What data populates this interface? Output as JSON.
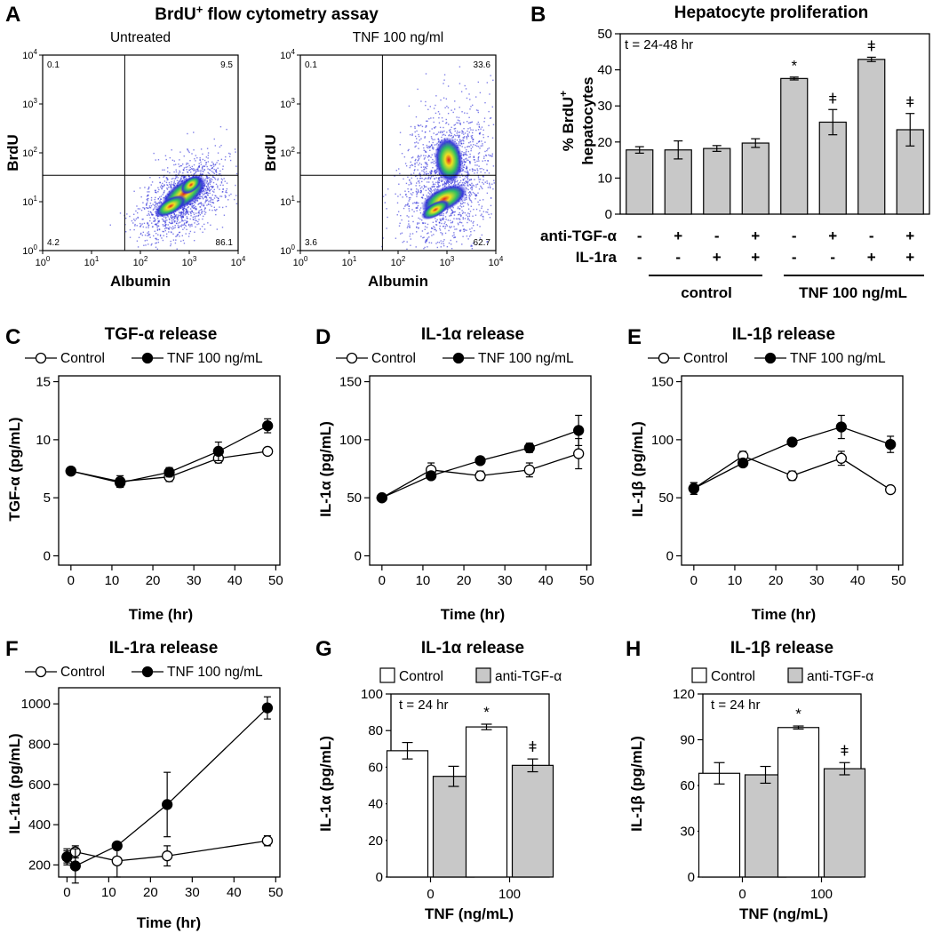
{
  "colors": {
    "bar_fill": "#c8c8c8",
    "bar_open": "#ffffff",
    "density_low": "#2b2bd9",
    "density_mid": "#2fc060",
    "density_high": "#f0e020",
    "density_peak": "#e02020"
  },
  "panels": {
    "A": {
      "label": "A",
      "title_main": "BrdU",
      "title_sup": "+",
      "title_rest": " flow cytometry assay",
      "plots": [
        {
          "subtitle": "Untreated",
          "xlabel": "Albumin",
          "ylabel": "BrdU",
          "ul": "0.1",
          "ur": "9.5",
          "ll": "4.2",
          "lr": "86.1"
        },
        {
          "subtitle": "TNF 100 ng/ml",
          "xlabel": "Albumin",
          "ylabel": "BrdU",
          "ul": "0.1",
          "ur": "33.6",
          "ll": "3.6",
          "lr": "62.7"
        }
      ],
      "tick_base": "10",
      "tick_exps": [
        "0",
        "1",
        "2",
        "3",
        "4"
      ]
    },
    "B": {
      "label": "B",
      "title": "Hepatocyte proliferation",
      "note": "t = 24-48 hr",
      "ylabel1": "% BrdU",
      "ylabel_sup": "+",
      "ylabel2": "hepatocytes",
      "row1_label": "anti-TGF-α",
      "row2_label": "IL-1ra",
      "group1": "control",
      "group2": "TNF 100 ng/mL"
    },
    "C": {
      "label": "C",
      "title": "TGF-α release",
      "ylabel": "TGF-α (pg/mL)",
      "xlabel": "Time (hr)"
    },
    "D": {
      "label": "D",
      "title": "IL-1α release",
      "ylabel": "IL-1α (pg/mL)",
      "xlabel": "Time (hr)"
    },
    "E": {
      "label": "E",
      "title": "IL-1β release",
      "ylabel": "IL-1β (pg/mL)",
      "xlabel": "Time (hr)"
    },
    "F": {
      "label": "F",
      "title": "IL-1ra release",
      "ylabel": "IL-1ra (pg/mL)",
      "xlabel": "Time (hr)"
    },
    "G": {
      "label": "G",
      "title": "IL-1α release",
      "ylabel": "IL-1α (pg/mL)",
      "xlabel": "TNF (ng/mL)",
      "note": "t = 24 hr"
    },
    "H": {
      "label": "H",
      "title": "IL-1β release",
      "ylabel": "IL-1β (pg/mL)",
      "xlabel": "TNF (ng/mL)",
      "note": "t = 24 hr"
    }
  },
  "chart_data": [
    {
      "id": "B",
      "type": "bar",
      "categories": [
        "1",
        "2",
        "3",
        "4",
        "5",
        "6",
        "7",
        "8"
      ],
      "values": [
        17.8,
        17.8,
        18.2,
        19.7,
        37.6,
        25.5,
        42.9,
        23.4
      ],
      "errors": [
        0.9,
        2.5,
        0.8,
        1.2,
        0.4,
        3.5,
        0.6,
        4.5
      ],
      "sig": [
        "",
        "",
        "",
        "",
        "*",
        "ǂ",
        "ǂ",
        "ǂ"
      ],
      "row1": [
        "-",
        "+",
        "-",
        "+",
        "-",
        "+",
        "-",
        "+"
      ],
      "row2": [
        "-",
        "-",
        "+",
        "+",
        "-",
        "-",
        "+",
        "+"
      ],
      "ylim": [
        0,
        50
      ],
      "yticks": [
        0,
        10,
        20,
        30,
        40,
        50
      ]
    },
    {
      "id": "C",
      "type": "line",
      "x": [
        0,
        12,
        24,
        36,
        48
      ],
      "series": [
        {
          "name": "Control",
          "marker": "open",
          "values": [
            7.3,
            6.4,
            6.8,
            8.4,
            9.0
          ],
          "errors": [
            0.3,
            0.5,
            0.4,
            0.4,
            0.2
          ]
        },
        {
          "name": "TNF 100 ng/mL",
          "marker": "filled",
          "values": [
            7.3,
            6.3,
            7.2,
            9.0,
            11.2
          ],
          "errors": [
            0.3,
            0.4,
            0.4,
            0.8,
            0.6
          ]
        }
      ],
      "xlim": [
        -3,
        51
      ],
      "ylim": [
        -0.8,
        15.5
      ],
      "xticks": [
        0,
        10,
        20,
        30,
        40,
        50
      ],
      "yticks": [
        0,
        5,
        10,
        15
      ]
    },
    {
      "id": "D",
      "type": "line",
      "x": [
        0,
        12,
        24,
        36,
        48
      ],
      "series": [
        {
          "name": "Control",
          "marker": "open",
          "values": [
            50,
            74,
            69,
            74,
            88
          ],
          "errors": [
            1,
            6,
            4,
            6,
            13
          ]
        },
        {
          "name": "TNF 100 ng/mL",
          "marker": "filled",
          "values": [
            50,
            69,
            82,
            93,
            108
          ],
          "errors": [
            1,
            3,
            2,
            4,
            13
          ]
        }
      ],
      "xlim": [
        -3,
        51
      ],
      "ylim": [
        -8,
        155
      ],
      "xticks": [
        0,
        10,
        20,
        30,
        40,
        50
      ],
      "yticks": [
        0,
        50,
        100,
        150
      ]
    },
    {
      "id": "E",
      "type": "line",
      "x": [
        0,
        12,
        24,
        36,
        48
      ],
      "series": [
        {
          "name": "Control",
          "marker": "open",
          "values": [
            58,
            86,
            69,
            84,
            57
          ],
          "errors": [
            5,
            4,
            4,
            6,
            3
          ]
        },
        {
          "name": "TNF 100 ng/mL",
          "marker": "filled",
          "values": [
            58,
            80,
            98,
            111,
            96
          ],
          "errors": [
            5,
            3,
            2,
            10,
            7
          ]
        }
      ],
      "xlim": [
        -3,
        51
      ],
      "ylim": [
        -8,
        155
      ],
      "xticks": [
        0,
        10,
        20,
        30,
        40,
        50
      ],
      "yticks": [
        0,
        50,
        100,
        150
      ]
    },
    {
      "id": "F",
      "type": "line",
      "x": [
        0,
        2,
        12,
        24,
        48
      ],
      "series": [
        {
          "name": "Control",
          "marker": "open",
          "values": [
            240,
            265,
            220,
            245,
            320
          ],
          "errors": [
            40,
            30,
            80,
            50,
            25
          ]
        },
        {
          "name": "TNF 100 ng/mL",
          "marker": "filled",
          "values": [
            240,
            195,
            295,
            500,
            980
          ],
          "errors": [
            30,
            85,
            10,
            160,
            55
          ]
        }
      ],
      "xlim": [
        -2,
        51
      ],
      "ylim": [
        140,
        1080
      ],
      "xticks": [
        0,
        10,
        20,
        30,
        40,
        50
      ],
      "yticks": [
        200,
        400,
        600,
        800,
        1000
      ]
    },
    {
      "id": "G",
      "type": "bar",
      "categories": [
        "0",
        "100"
      ],
      "series": [
        {
          "name": "Control",
          "values": [
            69,
            82
          ],
          "errors": [
            4.5,
            1.5
          ],
          "sig": [
            "",
            "*"
          ]
        },
        {
          "name": "anti-TGF-α",
          "values": [
            55,
            61
          ],
          "errors": [
            5.5,
            3.5
          ],
          "sig": [
            "",
            "ǂ"
          ]
        }
      ],
      "ylim": [
        0,
        100
      ],
      "yticks": [
        0,
        20,
        40,
        60,
        80,
        100
      ]
    },
    {
      "id": "H",
      "type": "bar",
      "categories": [
        "0",
        "100"
      ],
      "series": [
        {
          "name": "Control",
          "values": [
            68,
            98
          ],
          "errors": [
            7,
            1
          ],
          "sig": [
            "",
            "*"
          ]
        },
        {
          "name": "anti-TGF-α",
          "values": [
            67,
            71
          ],
          "errors": [
            5.5,
            4
          ],
          "sig": [
            "",
            "ǂ"
          ]
        }
      ],
      "ylim": [
        0,
        120
      ],
      "yticks": [
        0,
        30,
        60,
        90,
        120
      ]
    }
  ]
}
